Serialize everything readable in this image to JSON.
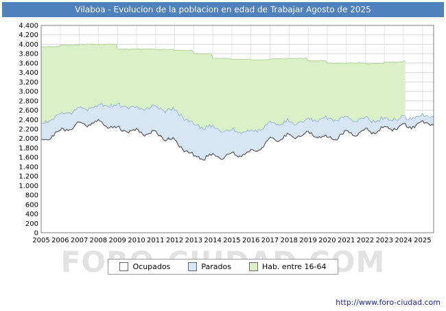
{
  "header": {
    "bg": "#4f81bd"
  },
  "watermark": "FORO-CIUDAD.COM",
  "footer": {
    "url": "http://www.foro-ciudad.com"
  },
  "legend": {
    "items": [
      {
        "label": "Ocupados",
        "color": "#ffffff"
      },
      {
        "label": "Parados",
        "color": "#d6e6f5"
      },
      {
        "label": "Hab. entre 16-64",
        "color": "#daf0c6"
      }
    ]
  },
  "chart_data": {
    "type": "area",
    "title": "Vilaboa - Evolucion de la poblacion en edad de Trabajar Agosto de 2025",
    "x_label_years": [
      2005,
      2006,
      2007,
      2008,
      2009,
      2010,
      2011,
      2012,
      2013,
      2014,
      2015,
      2016,
      2017,
      2018,
      2019,
      2020,
      2021,
      2022,
      2023,
      2024,
      2025
    ],
    "x_start": 2005.0,
    "x_end": 2025.58,
    "y_min": 0,
    "y_max": 4400,
    "y_tick_step": 200,
    "grid": true,
    "legend_position": "bottom",
    "series": [
      {
        "name": "Ocupados",
        "role": "employed",
        "line": "#595959",
        "fill": "#ffffff",
        "values_by_year": [
          1950,
          2150,
          2300,
          2350,
          2200,
          2150,
          2100,
          1950,
          1600,
          1620,
          1650,
          1700,
          1950,
          2050,
          2100,
          2000,
          2100,
          2150,
          2200,
          2250,
          2320
        ]
      },
      {
        "name": "Parados",
        "role": "unemployed-stacked-on-employed",
        "line": "#9ab8d8",
        "fill": "#d6e6f5",
        "values_by_year": [
          380,
          350,
          320,
          350,
          500,
          500,
          550,
          650,
          680,
          600,
          520,
          450,
          350,
          300,
          280,
          420,
          320,
          250,
          200,
          180,
          150
        ]
      },
      {
        "name": "Hab. entre 16-64",
        "role": "working-age-population",
        "line": "#b2d199",
        "fill": "#daf0c6",
        "interp": "step",
        "end_x": 2024.15,
        "values_by_year": [
          3950,
          3980,
          4000,
          4000,
          3900,
          3900,
          3890,
          3870,
          3800,
          3700,
          3680,
          3670,
          3690,
          3700,
          3650,
          3600,
          3600,
          3590,
          3620,
          3650,
          null
        ]
      }
    ]
  }
}
